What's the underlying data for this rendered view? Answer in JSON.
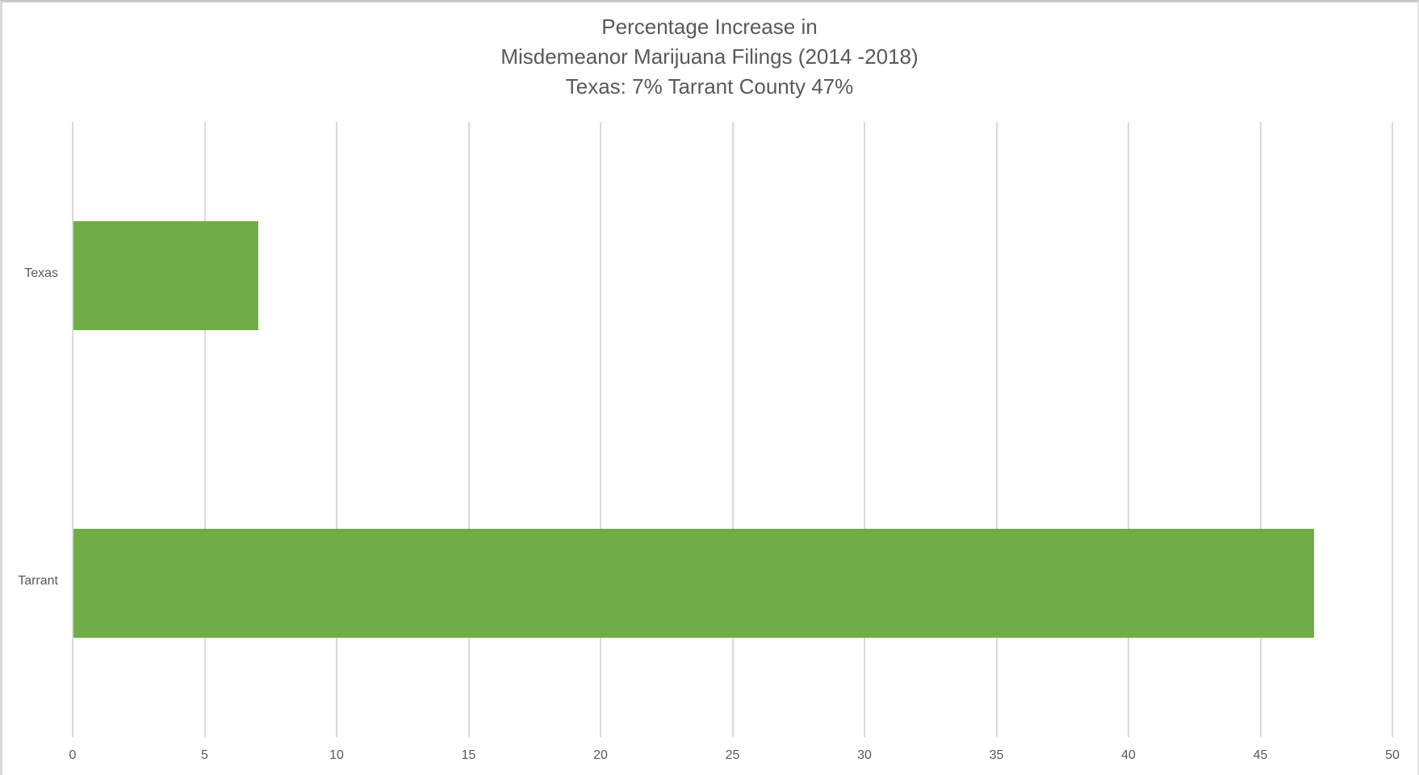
{
  "title": {
    "line1": "Percentage Increase in",
    "line2": "Misdemeanor Marijuana Filings (2014 -2018)",
    "line3": "Texas: 7% Tarrant County 47%"
  },
  "colors": {
    "bar": "#70ad47",
    "gridline": "#d9d9d9",
    "text": "#595959"
  },
  "axis": {
    "x_ticks": [
      "0",
      "5",
      "10",
      "15",
      "20",
      "25",
      "30",
      "35",
      "40",
      "45",
      "50"
    ],
    "y_categories": [
      "Texas",
      "Tarrant"
    ]
  },
  "chart_data": {
    "type": "bar",
    "orientation": "horizontal",
    "title": "Percentage Increase in Misdemeanor Marijuana Filings (2014 -2018) Texas: 7% Tarrant County 47%",
    "categories": [
      "Texas",
      "Tarrant"
    ],
    "values": [
      7,
      47
    ],
    "xlabel": "",
    "ylabel": "",
    "xlim": [
      0,
      50
    ],
    "x_ticks": [
      0,
      5,
      10,
      15,
      20,
      25,
      30,
      35,
      40,
      45,
      50
    ],
    "grid": "vertical",
    "legend": null,
    "bar_color": "#70ad47"
  }
}
